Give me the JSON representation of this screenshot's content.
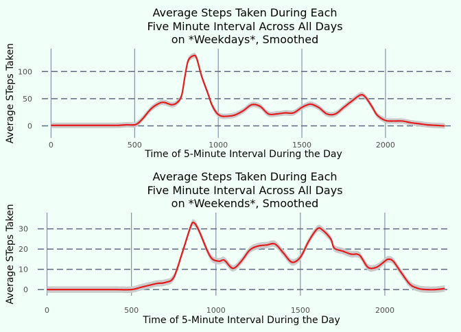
{
  "chart_data": [
    {
      "type": "line",
      "title_lines": [
        "Average Steps Taken During Each",
        "Five Minute Interval Across All Days",
        "on *Weekdays*, Smoothed"
      ],
      "xlabel": "Time of 5-Minute Interval During the Day",
      "ylabel": "Average STeps Taken",
      "xlim": [
        -55,
        2390
      ],
      "ylim": [
        -22,
        142
      ],
      "xticks": [
        0,
        500,
        1000,
        1500,
        2000
      ],
      "yticks": [
        0,
        50,
        100
      ],
      "series": [
        {
          "smoothed": true,
          "color": "#e41a1c",
          "band_color": "#c8c8c8",
          "band_halfwidth": 5,
          "x": [
            0,
            100,
            200,
            300,
            350,
            400,
            450,
            500,
            520,
            550,
            600,
            650,
            680,
            720,
            750,
            780,
            800,
            820,
            850,
            870,
            900,
            940,
            960,
            990,
            1020,
            1060,
            1100,
            1150,
            1200,
            1250,
            1300,
            1350,
            1400,
            1450,
            1500,
            1550,
            1600,
            1650,
            1700,
            1750,
            1800,
            1850,
            1880,
            1920,
            1950,
            2000,
            2050,
            2100,
            2150,
            2200,
            2250,
            2300,
            2355
          ],
          "y": [
            1,
            1,
            1,
            1,
            1,
            1,
            2,
            2,
            5,
            14,
            32,
            42,
            43,
            39,
            42,
            55,
            90,
            120,
            129,
            125,
            92,
            58,
            40,
            24,
            18,
            18,
            20,
            28,
            39,
            36,
            22,
            22,
            24,
            24,
            34,
            40,
            34,
            22,
            22,
            34,
            46,
            57,
            53,
            35,
            20,
            10,
            9,
            9,
            6,
            4,
            2,
            1,
            0
          ]
        }
      ]
    },
    {
      "type": "line",
      "title_lines": [
        "Average Steps Taken During Each",
        "Five Minute Interval Across All Days",
        "on *Weekends*, Smoothed"
      ],
      "xlabel": "Time of 5-Minute Interval During the Day",
      "ylabel": "Average STeps Taken",
      "xlim": [
        -55,
        2390
      ],
      "ylim": [
        -3,
        38
      ],
      "xticks": [
        0,
        500,
        1000,
        1500,
        2000
      ],
      "yticks": [
        0,
        10,
        20,
        30
      ],
      "series": [
        {
          "smoothed": true,
          "color": "#e41a1c",
          "band_color": "#c8c8c8",
          "band_halfwidth": 1.6,
          "x": [
            0,
            100,
            200,
            300,
            400,
            500,
            550,
            600,
            650,
            700,
            750,
            800,
            850,
            870,
            900,
            950,
            980,
            1020,
            1050,
            1100,
            1150,
            1200,
            1250,
            1300,
            1350,
            1400,
            1450,
            1500,
            1550,
            1600,
            1630,
            1680,
            1700,
            1750,
            1800,
            1850,
            1900,
            1950,
            2000,
            2020,
            2050,
            2100,
            2150,
            2200,
            2250,
            2300,
            2355
          ],
          "y": [
            0,
            0,
            0,
            0,
            0,
            0,
            1,
            2,
            3,
            3.5,
            6,
            18,
            31,
            33,
            29,
            19,
            15,
            14,
            14.5,
            10.5,
            14,
            19.5,
            21.5,
            22,
            22.5,
            18,
            13.5,
            16,
            24,
            30,
            29.5,
            25,
            20.5,
            19,
            17.5,
            17,
            11,
            11,
            14,
            15,
            14,
            8,
            2.5,
            0.5,
            0,
            0,
            0.5
          ]
        }
      ]
    }
  ]
}
